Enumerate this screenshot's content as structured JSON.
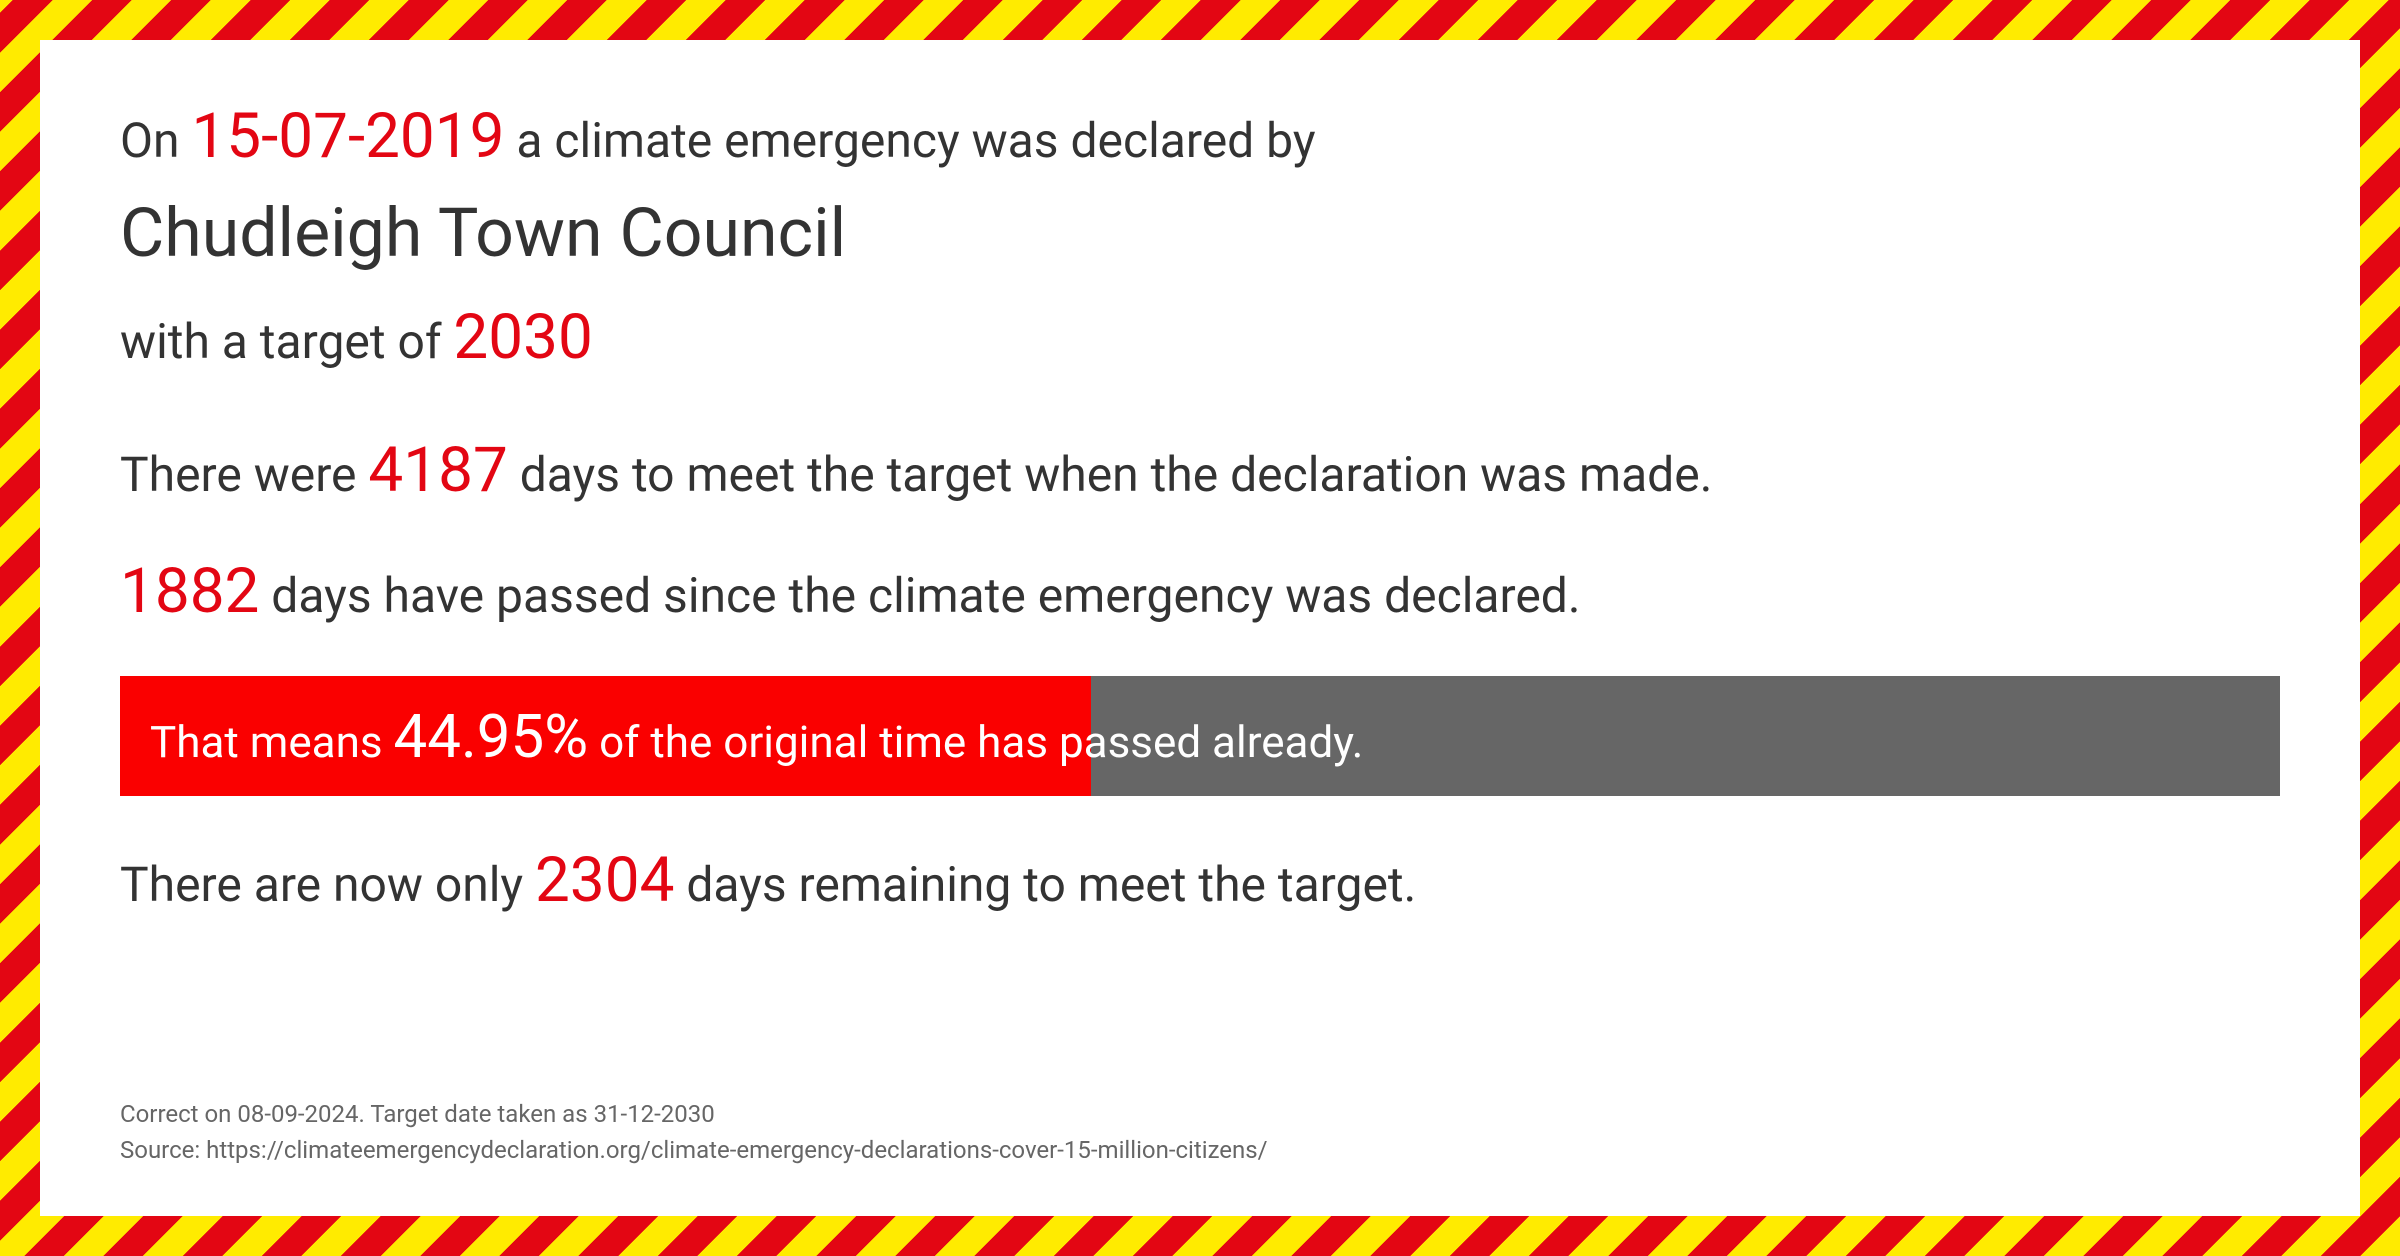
{
  "header": {
    "prefix": "On ",
    "date": "15-07-2019",
    "suffix": " a climate emergency was declared by"
  },
  "council": "Chudleigh Town Council",
  "target": {
    "prefix": "with a target of  ",
    "year": "2030"
  },
  "days_total": {
    "prefix": "There were ",
    "value": "4187",
    "suffix": "  days to meet the target when the declaration was made."
  },
  "days_passed": {
    "value": "1882",
    "suffix": " days have passed since the climate emergency was declared."
  },
  "progress": {
    "prefix": "That means ",
    "percent_text": "44.95%",
    "percent_value": 44.95,
    "suffix": " of the original time has passed already.",
    "fill_color": "#fa0000",
    "bg_color": "#666666"
  },
  "days_remaining": {
    "prefix": "There are now only ",
    "value": "2304",
    "suffix": " days remaining to meet the target."
  },
  "footer": {
    "line1": "Correct on 08-09-2024. Target date taken as 31-12-2030",
    "line2": "Source: https://climateemergencydeclaration.org/climate-emergency-declarations-cover-15-million-citizens/"
  },
  "colors": {
    "accent": "#e30613",
    "text": "#333333",
    "stripe_yellow": "#ffeb00",
    "stripe_red": "#e30613"
  }
}
